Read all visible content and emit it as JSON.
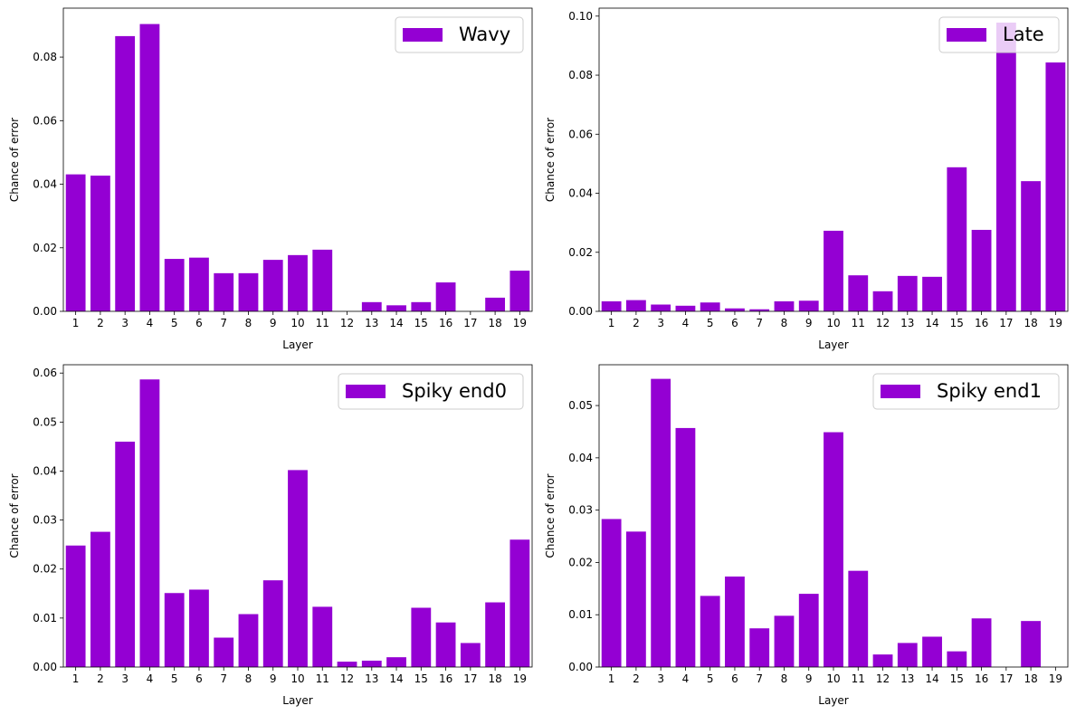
{
  "chart_data": [
    {
      "type": "bar",
      "categories": [
        "1",
        "2",
        "3",
        "4",
        "5",
        "6",
        "7",
        "8",
        "9",
        "10",
        "11",
        "12",
        "13",
        "14",
        "15",
        "16",
        "17",
        "18",
        "19"
      ],
      "series": [
        {
          "name": "Wavy",
          "values": [
            0.0431,
            0.0427,
            0.0866,
            0.0904,
            0.0165,
            0.0169,
            0.012,
            0.012,
            0.0162,
            0.0177,
            0.0194,
            0.0,
            0.0029,
            0.0019,
            0.0029,
            0.0091,
            0.0,
            0.0043,
            0.0128
          ]
        }
      ],
      "xlabel": "Layer",
      "ylabel": "Chance of error",
      "ylim": [
        0,
        0.0954
      ],
      "yticks": [
        0.0,
        0.02,
        0.04,
        0.06,
        0.08
      ],
      "ytick_labels": [
        "0.00",
        "0.02",
        "0.04",
        "0.06",
        "0.08"
      ],
      "legend_position": "top-right",
      "grid": false,
      "color": "#9400d3"
    },
    {
      "type": "bar",
      "categories": [
        "1",
        "2",
        "3",
        "4",
        "5",
        "6",
        "7",
        "8",
        "9",
        "10",
        "11",
        "12",
        "13",
        "14",
        "15",
        "16",
        "17",
        "18",
        "19"
      ],
      "series": [
        {
          "name": "Late",
          "values": [
            0.0034,
            0.0038,
            0.0023,
            0.0019,
            0.003,
            0.001,
            0.0007,
            0.0034,
            0.0036,
            0.0273,
            0.0122,
            0.0068,
            0.012,
            0.0117,
            0.0488,
            0.0276,
            0.0978,
            0.0441,
            0.0843
          ]
        }
      ],
      "xlabel": "Layer",
      "ylabel": "Chance of error",
      "ylim": [
        0,
        0.1027
      ],
      "yticks": [
        0.0,
        0.02,
        0.04,
        0.06,
        0.08,
        0.1
      ],
      "ytick_labels": [
        "0.00",
        "0.02",
        "0.04",
        "0.06",
        "0.08",
        "0.10"
      ],
      "legend_position": "top-right",
      "grid": false,
      "color": "#9400d3"
    },
    {
      "type": "bar",
      "categories": [
        "1",
        "2",
        "3",
        "4",
        "5",
        "6",
        "7",
        "8",
        "9",
        "10",
        "11",
        "12",
        "13",
        "14",
        "15",
        "16",
        "17",
        "18",
        "19"
      ],
      "series": [
        {
          "name": "Spiky end0",
          "values": [
            0.0248,
            0.0276,
            0.046,
            0.0587,
            0.0151,
            0.0158,
            0.006,
            0.0108,
            0.0177,
            0.0402,
            0.0123,
            0.0011,
            0.0013,
            0.002,
            0.0121,
            0.0091,
            0.0049,
            0.0132,
            0.026
          ]
        }
      ],
      "xlabel": "Layer",
      "ylabel": "Chance of error",
      "ylim": [
        0,
        0.0617
      ],
      "yticks": [
        0.0,
        0.01,
        0.02,
        0.03,
        0.04,
        0.05,
        0.06
      ],
      "ytick_labels": [
        "0.00",
        "0.01",
        "0.02",
        "0.03",
        "0.04",
        "0.05",
        "0.06"
      ],
      "legend_position": "top-right",
      "grid": false,
      "color": "#9400d3"
    },
    {
      "type": "bar",
      "categories": [
        "1",
        "2",
        "3",
        "4",
        "5",
        "6",
        "7",
        "8",
        "9",
        "10",
        "11",
        "12",
        "13",
        "14",
        "15",
        "16",
        "17",
        "18",
        "19"
      ],
      "series": [
        {
          "name": "Spiky end1",
          "values": [
            0.0283,
            0.0259,
            0.0551,
            0.0457,
            0.0136,
            0.0173,
            0.0074,
            0.0098,
            0.014,
            0.0449,
            0.0184,
            0.0024,
            0.0046,
            0.0058,
            0.003,
            0.0093,
            0.0,
            0.0088,
            0.0
          ]
        }
      ],
      "xlabel": "Layer",
      "ylabel": "Chance of error",
      "ylim": [
        0,
        0.0578
      ],
      "yticks": [
        0.0,
        0.01,
        0.02,
        0.03,
        0.04,
        0.05
      ],
      "ytick_labels": [
        "0.00",
        "0.01",
        "0.02",
        "0.03",
        "0.04",
        "0.05"
      ],
      "legend_position": "top-right",
      "grid": false,
      "color": "#9400d3"
    }
  ]
}
